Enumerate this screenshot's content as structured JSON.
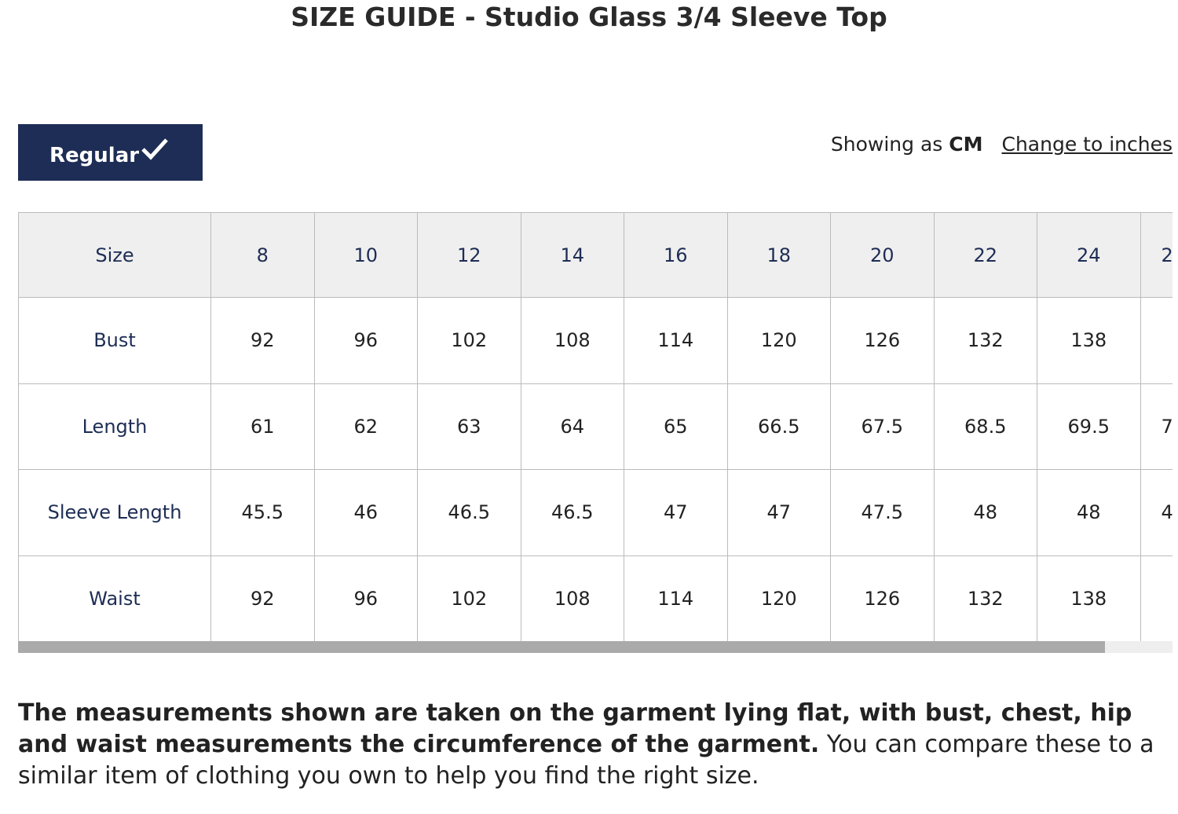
{
  "title": "SIZE GUIDE - Studio Glass 3/4 Sleeve Top",
  "fit_button": "Regular",
  "units": {
    "prefix": "Showing as",
    "current": "CM",
    "change_link": "Change to inches"
  },
  "table": {
    "header": [
      "Size",
      8,
      10,
      12,
      14,
      16,
      18,
      20,
      22,
      24,
      "2"
    ],
    "rows": [
      [
        "Bust",
        92,
        96,
        102,
        108,
        114,
        120,
        126,
        132,
        138,
        null
      ],
      [
        "Length",
        61,
        62,
        63,
        64,
        65,
        66.5,
        67.5,
        68.5,
        69.5,
        "7"
      ],
      [
        "Sleeve Length",
        45.5,
        46,
        46.5,
        46.5,
        47,
        47,
        47.5,
        48,
        48,
        "4"
      ],
      [
        "Waist",
        92,
        96,
        102,
        108,
        114,
        120,
        126,
        132,
        138,
        null
      ]
    ]
  },
  "note": {
    "bold": "The measurements shown are taken on the garment lying flat, with bust, chest, hip and waist measurements the circumference of the garment.",
    "text": "You can compare these to a similar item of clothing you own to help you find the right size."
  }
}
